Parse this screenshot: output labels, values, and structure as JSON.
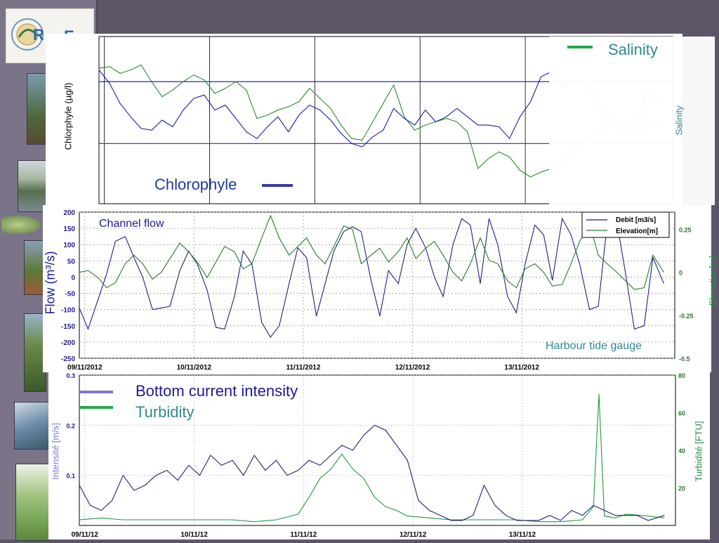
{
  "chart_data": [
    {
      "type": "line",
      "ylabel": "Chlorphyle (µg/l)",
      "y2label": "Salinity",
      "grid": true,
      "legend_position": "bottom-left and top-right",
      "x_ticks": [
        "09/11/2012",
        "10/11/2012",
        "11/11/2012",
        "12/11/2012",
        "13/11/2012"
      ],
      "x_range": [
        0,
        5.45
      ],
      "y_range": [
        0,
        10
      ],
      "series": [
        {
          "name": "Chlorophyle",
          "color": "#1a1ab8",
          "x": [
            0,
            0.1,
            0.2,
            0.3,
            0.4,
            0.5,
            0.6,
            0.7,
            0.8,
            0.9,
            1.0,
            1.1,
            1.2,
            1.3,
            1.4,
            1.5,
            1.6,
            1.7,
            1.8,
            1.9,
            2.0,
            2.1,
            2.2,
            2.3,
            2.4,
            2.5,
            2.6,
            2.7,
            2.8,
            2.9,
            3.0,
            3.1,
            3.2,
            3.3,
            3.4,
            3.5,
            3.6,
            3.7,
            3.8,
            3.9,
            4.0,
            4.1,
            4.2,
            4.3,
            4.4,
            4.5,
            4.6,
            4.7,
            4.8,
            4.9,
            5.0,
            5.1,
            5.2,
            5.35
          ],
          "values": [
            8.0,
            7.2,
            6.0,
            5.2,
            4.5,
            4.4,
            5.0,
            4.6,
            5.6,
            6.3,
            6.5,
            5.6,
            5.9,
            5.1,
            4.3,
            3.9,
            4.6,
            5.2,
            4.3,
            5.3,
            5.9,
            5.6,
            5.0,
            4.2,
            3.6,
            3.4,
            4.0,
            4.4,
            5.7,
            5.1,
            4.7,
            5.6,
            4.9,
            5.2,
            5.7,
            5.2,
            4.7,
            4.7,
            4.6,
            3.9,
            5.2,
            6.1,
            7.6,
            7.9,
            6.9,
            7.4,
            7.2,
            6.4,
            5.5,
            4.7,
            4.2,
            4.3,
            6.6,
            6.1
          ]
        },
        {
          "name": "Salinity",
          "color": "#2a8a2a",
          "x": [
            0,
            0.1,
            0.2,
            0.3,
            0.4,
            0.5,
            0.6,
            0.7,
            0.8,
            0.9,
            1.0,
            1.1,
            1.2,
            1.3,
            1.4,
            1.5,
            1.6,
            1.7,
            1.8,
            1.9,
            2.0,
            2.1,
            2.2,
            2.3,
            2.4,
            2.5,
            2.6,
            2.7,
            2.8,
            2.9,
            3.0,
            3.1,
            3.2,
            3.3,
            3.4,
            3.5,
            3.6,
            3.7,
            3.8,
            3.9,
            4.0,
            4.1,
            4.2,
            4.3,
            4.4,
            4.5,
            4.6,
            4.7,
            4.8,
            4.9,
            5.0,
            5.1,
            5.2,
            5.35
          ],
          "values": [
            8.1,
            8.2,
            7.8,
            8.0,
            8.3,
            7.3,
            6.4,
            6.8,
            7.3,
            7.7,
            7.4,
            6.6,
            6.9,
            7.3,
            6.8,
            5.1,
            5.3,
            5.6,
            5.8,
            6.1,
            6.9,
            6.3,
            5.7,
            4.7,
            3.9,
            3.8,
            4.9,
            6.0,
            7.1,
            5.2,
            4.4,
            4.7,
            4.9,
            5.1,
            4.9,
            4.3,
            2.1,
            2.7,
            3.1,
            2.8,
            2.0,
            1.6,
            1.9,
            2.1,
            2.6,
            3.1,
            3.6,
            4.2,
            4.6,
            4.9,
            4.7,
            4.3,
            4.6,
            4.8
          ]
        }
      ]
    },
    {
      "type": "line",
      "title": "Channel flow",
      "ylabel": "Flow (m³/s)",
      "y2label": "Elevation[m]",
      "grid": true,
      "legend_position": "top-right",
      "x_ticks": [
        "09/11/2012",
        "10/11/2012",
        "11/11/2012",
        "12/11/2012",
        "13/11/2012"
      ],
      "x_range": [
        0,
        5.45
      ],
      "y_range": [
        -250,
        200
      ],
      "y_ticks": [
        200,
        150,
        100,
        50,
        0,
        -50,
        -100,
        -150,
        -200,
        -250
      ],
      "y2_range": [
        -0.5,
        0.35
      ],
      "y2_ticks": [
        "0.25",
        "0",
        "-0.25",
        "-0.5"
      ],
      "annotation": "Harbour tide gauge",
      "series": [
        {
          "name": "Debit [m3/s]",
          "color": "#1f1f8a",
          "x": [
            0,
            0.08,
            0.17,
            0.25,
            0.33,
            0.42,
            0.5,
            0.58,
            0.67,
            0.75,
            0.83,
            0.92,
            1.0,
            1.08,
            1.17,
            1.25,
            1.33,
            1.42,
            1.5,
            1.58,
            1.67,
            1.75,
            1.83,
            1.92,
            2.0,
            2.08,
            2.17,
            2.25,
            2.33,
            2.42,
            2.5,
            2.58,
            2.67,
            2.75,
            2.83,
            2.92,
            3.0,
            3.08,
            3.17,
            3.25,
            3.33,
            3.42,
            3.5,
            3.58,
            3.67,
            3.75,
            3.83,
            3.92,
            4.0,
            4.08,
            4.17,
            4.25,
            4.33,
            4.42,
            4.5,
            4.58,
            4.67,
            4.75,
            4.83,
            4.92,
            5.0,
            5.08,
            5.17,
            5.25,
            5.35
          ],
          "values": [
            -95,
            -160,
            -70,
            10,
            110,
            125,
            60,
            0,
            -100,
            -95,
            -90,
            20,
            80,
            40,
            -40,
            -155,
            -160,
            -60,
            80,
            40,
            -140,
            -185,
            -150,
            -20,
            90,
            60,
            -120,
            -20,
            80,
            140,
            155,
            140,
            -10,
            -120,
            20,
            -20,
            100,
            150,
            90,
            0,
            -60,
            100,
            180,
            160,
            -20,
            180,
            100,
            -60,
            -110,
            40,
            160,
            130,
            -10,
            180,
            130,
            40,
            -100,
            -90,
            160,
            170,
            10,
            -160,
            -150,
            60,
            -20
          ]
        },
        {
          "name": "Elevation[m]",
          "color": "#2a7a2a",
          "x": [
            0,
            0.08,
            0.17,
            0.25,
            0.33,
            0.42,
            0.5,
            0.58,
            0.67,
            0.75,
            0.83,
            0.92,
            1.0,
            1.08,
            1.17,
            1.25,
            1.33,
            1.42,
            1.5,
            1.58,
            1.67,
            1.75,
            1.83,
            1.92,
            2.0,
            2.08,
            2.17,
            2.25,
            2.33,
            2.42,
            2.5,
            2.58,
            2.67,
            2.75,
            2.83,
            2.92,
            3.0,
            3.08,
            3.17,
            3.25,
            3.33,
            3.42,
            3.5,
            3.58,
            3.67,
            3.75,
            3.83,
            3.92,
            4.0,
            4.08,
            4.17,
            4.25,
            4.33,
            4.42,
            4.5,
            4.58,
            4.67,
            4.75,
            4.83,
            4.92,
            5.0,
            5.08,
            5.17,
            5.25,
            5.35
          ],
          "values": [
            0,
            0.01,
            -0.03,
            -0.09,
            -0.06,
            0.05,
            0.1,
            0.05,
            -0.04,
            0,
            0.08,
            0.17,
            0.12,
            0.06,
            -0.03,
            0.06,
            0.15,
            0.12,
            0.02,
            0.05,
            0.2,
            0.33,
            0.2,
            0.1,
            0.15,
            0.2,
            0.1,
            0.05,
            0.15,
            0.27,
            0.25,
            0.05,
            0.1,
            0.14,
            0.06,
            0.12,
            0.2,
            0.08,
            0.14,
            0.18,
            0.1,
            0.0,
            -0.05,
            0.05,
            0.2,
            0.07,
            0.05,
            -0.05,
            -0.09,
            0.02,
            0.05,
            0.0,
            -0.08,
            -0.07,
            0.05,
            0.18,
            0.28,
            0.1,
            0.05,
            0.0,
            -0.05,
            -0.1,
            -0.09,
            0.1,
            0.0
          ]
        }
      ]
    },
    {
      "type": "line",
      "ylabel": "Intensité [m/s]",
      "y2label": "Turbidité [FTU]",
      "grid": true,
      "legend_position": "top-left",
      "x_ticks": [
        "09/11/12",
        "10/11/12",
        "11/11/12",
        "12/11/12",
        "13/11/12"
      ],
      "x_range": [
        0,
        5.45
      ],
      "y_range": [
        0,
        0.3
      ],
      "y_ticks": [
        "0.3",
        "0.2",
        "0.1"
      ],
      "y2_range": [
        0,
        80
      ],
      "y2_ticks": [
        "80",
        "60",
        "40",
        "20"
      ],
      "series": [
        {
          "name": "Bottom current intensity",
          "color": "#1f1f7a",
          "x": [
            0,
            0.1,
            0.2,
            0.3,
            0.4,
            0.5,
            0.6,
            0.7,
            0.8,
            0.9,
            1.0,
            1.1,
            1.2,
            1.3,
            1.4,
            1.5,
            1.6,
            1.7,
            1.8,
            1.9,
            2.0,
            2.1,
            2.2,
            2.3,
            2.4,
            2.5,
            2.6,
            2.7,
            2.8,
            2.9,
            3.0,
            3.1,
            3.2,
            3.3,
            3.4,
            3.5,
            3.6,
            3.7,
            3.8,
            3.9,
            4.0,
            4.1,
            4.2,
            4.3,
            4.4,
            4.5,
            4.6,
            4.7,
            4.8,
            4.9,
            5.0,
            5.1,
            5.2,
            5.35
          ],
          "values": [
            0.08,
            0.04,
            0.03,
            0.05,
            0.1,
            0.07,
            0.08,
            0.1,
            0.11,
            0.09,
            0.12,
            0.1,
            0.14,
            0.12,
            0.13,
            0.1,
            0.14,
            0.11,
            0.13,
            0.1,
            0.11,
            0.13,
            0.12,
            0.14,
            0.16,
            0.15,
            0.18,
            0.2,
            0.19,
            0.16,
            0.13,
            0.05,
            0.03,
            0.02,
            0.01,
            0.01,
            0.02,
            0.08,
            0.04,
            0.02,
            0.01,
            0.01,
            0.01,
            0.02,
            0.01,
            0.03,
            0.02,
            0.04,
            0.03,
            0.02,
            0.02,
            0.02,
            0.01,
            0.02
          ]
        },
        {
          "name": "Turbidity",
          "color": "#1f9a3a",
          "x": [
            0,
            0.2,
            0.4,
            0.6,
            0.8,
            1.0,
            1.2,
            1.4,
            1.6,
            1.8,
            2.0,
            2.1,
            2.2,
            2.3,
            2.4,
            2.5,
            2.6,
            2.7,
            2.8,
            2.9,
            3.0,
            3.2,
            3.4,
            3.6,
            3.8,
            4.0,
            4.2,
            4.4,
            4.6,
            4.7,
            4.75,
            4.8,
            4.9,
            5.0,
            5.2,
            5.35
          ],
          "values": [
            3,
            4,
            3,
            3,
            3,
            3,
            3,
            3,
            2,
            3,
            6,
            15,
            25,
            30,
            38,
            30,
            25,
            15,
            10,
            8,
            5,
            4,
            3,
            3,
            3,
            3,
            2,
            2,
            3,
            10,
            70,
            5,
            4,
            6,
            5,
            4
          ]
        }
      ]
    }
  ],
  "legends": {
    "top_chlorophyle": "Chlorophyle",
    "top_salinity": "Salinity",
    "top_salinity_axis": "Salinity",
    "mid_title": "Channel flow",
    "mid_debit": "Debit [m3/s]",
    "mid_elevation": "Elevation[m]",
    "bottom_current": "Bottom current intensity",
    "bottom_turbidity": "Turbidity"
  }
}
